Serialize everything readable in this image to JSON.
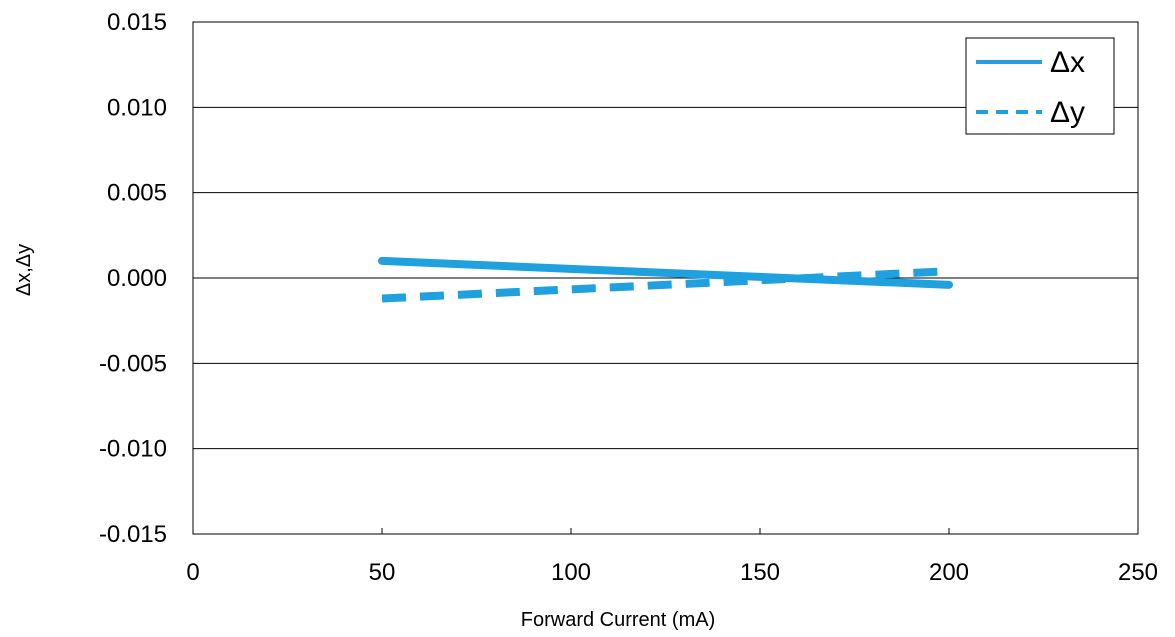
{
  "chart_data": {
    "type": "line",
    "xlabel": "Forward Current (mA)",
    "ylabel": "Δx,Δy",
    "xlim": [
      0,
      250
    ],
    "ylim": [
      -0.015,
      0.015
    ],
    "x_ticks": [
      "0",
      "50",
      "100",
      "150",
      "200",
      "250"
    ],
    "y_ticks": [
      "0.015",
      "0.010",
      "0.005",
      "0.000",
      "-0.005",
      "-0.010",
      "-0.015"
    ],
    "grid": "horizontal",
    "legend_position": "top-right",
    "series": [
      {
        "name": "Δx",
        "style": "solid",
        "color": "#1EA1DE",
        "x": [
          50,
          200
        ],
        "y": [
          0.001,
          -0.0004
        ]
      },
      {
        "name": "Δy",
        "style": "dashed",
        "color": "#1EA1DE",
        "x": [
          50,
          200
        ],
        "y": [
          -0.0012,
          0.0004
        ]
      }
    ]
  }
}
